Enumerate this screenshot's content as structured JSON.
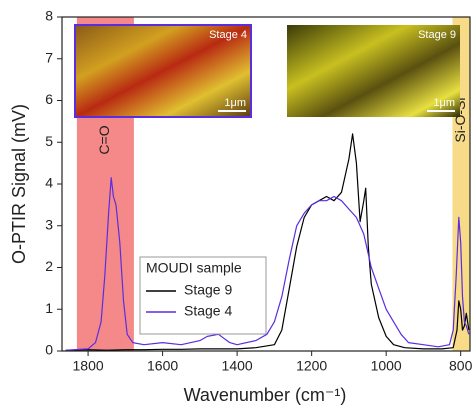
{
  "chart_data": {
    "type": "line",
    "xlabel": "Wavenumber (cm⁻¹)",
    "ylabel": "O-PTIR Signal (mV)",
    "xlim": [
      1870,
      775
    ],
    "ylim": [
      0,
      8
    ],
    "xticks": [
      1800,
      1600,
      1400,
      1200,
      1000,
      800
    ],
    "yticks": [
      0,
      1,
      2,
      3,
      4,
      5,
      6,
      7,
      8
    ],
    "legend_title": "MOUDI sample",
    "bands": [
      {
        "label": "C=O",
        "range": [
          1830,
          1677
        ],
        "color": "#f47c7c"
      },
      {
        "label": "Si-O-Si",
        "range": [
          822,
          775
        ],
        "color": "#f6d77c"
      }
    ],
    "insets": [
      {
        "label": "Stage 4",
        "scale": "1μm"
      },
      {
        "label": "Stage 9",
        "scale": "1μm"
      }
    ],
    "series": [
      {
        "name": "Stage 9",
        "color": "#000000",
        "x": [
          1860,
          1800,
          1750,
          1700,
          1650,
          1600,
          1550,
          1500,
          1450,
          1400,
          1350,
          1300,
          1280,
          1260,
          1240,
          1220,
          1200,
          1180,
          1160,
          1140,
          1120,
          1100,
          1090,
          1080,
          1070,
          1060,
          1055,
          1048,
          1040,
          1020,
          1000,
          980,
          950,
          900,
          850,
          820,
          810,
          805,
          800,
          795,
          790,
          785,
          778
        ],
        "values": [
          0.02,
          0.03,
          0.02,
          0.03,
          0.03,
          0.04,
          0.04,
          0.05,
          0.05,
          0.05,
          0.08,
          0.15,
          0.5,
          1.5,
          2.5,
          3.2,
          3.5,
          3.6,
          3.7,
          3.6,
          3.8,
          4.6,
          5.2,
          4.5,
          3.1,
          3.6,
          3.9,
          2.5,
          1.6,
          0.8,
          0.35,
          0.15,
          0.08,
          0.05,
          0.05,
          0.08,
          0.5,
          1.2,
          1.0,
          0.5,
          0.6,
          0.9,
          0.5
        ]
      },
      {
        "name": "Stage 4",
        "color": "#5a2de0",
        "x": [
          1860,
          1800,
          1780,
          1765,
          1755,
          1745,
          1738,
          1732,
          1725,
          1715,
          1705,
          1695,
          1680,
          1650,
          1600,
          1550,
          1500,
          1480,
          1450,
          1420,
          1400,
          1350,
          1320,
          1300,
          1280,
          1260,
          1240,
          1220,
          1200,
          1180,
          1160,
          1140,
          1120,
          1100,
          1080,
          1060,
          1040,
          1020,
          1000,
          980,
          960,
          940,
          900,
          860,
          830,
          820,
          812,
          805,
          800,
          795,
          790,
          785,
          778
        ],
        "values": [
          0.02,
          0.05,
          0.2,
          0.7,
          1.8,
          3.3,
          4.15,
          3.7,
          3.5,
          2.6,
          1.2,
          0.4,
          0.2,
          0.15,
          0.2,
          0.15,
          0.25,
          0.35,
          0.4,
          0.2,
          0.15,
          0.25,
          0.4,
          0.7,
          1.3,
          2.2,
          3.0,
          3.3,
          3.5,
          3.6,
          3.6,
          3.7,
          3.6,
          3.4,
          3.2,
          2.8,
          2.0,
          1.5,
          1.0,
          0.7,
          0.4,
          0.2,
          0.15,
          0.1,
          0.15,
          0.5,
          1.8,
          3.2,
          2.6,
          1.3,
          0.7,
          0.6,
          0.4
        ]
      }
    ]
  }
}
